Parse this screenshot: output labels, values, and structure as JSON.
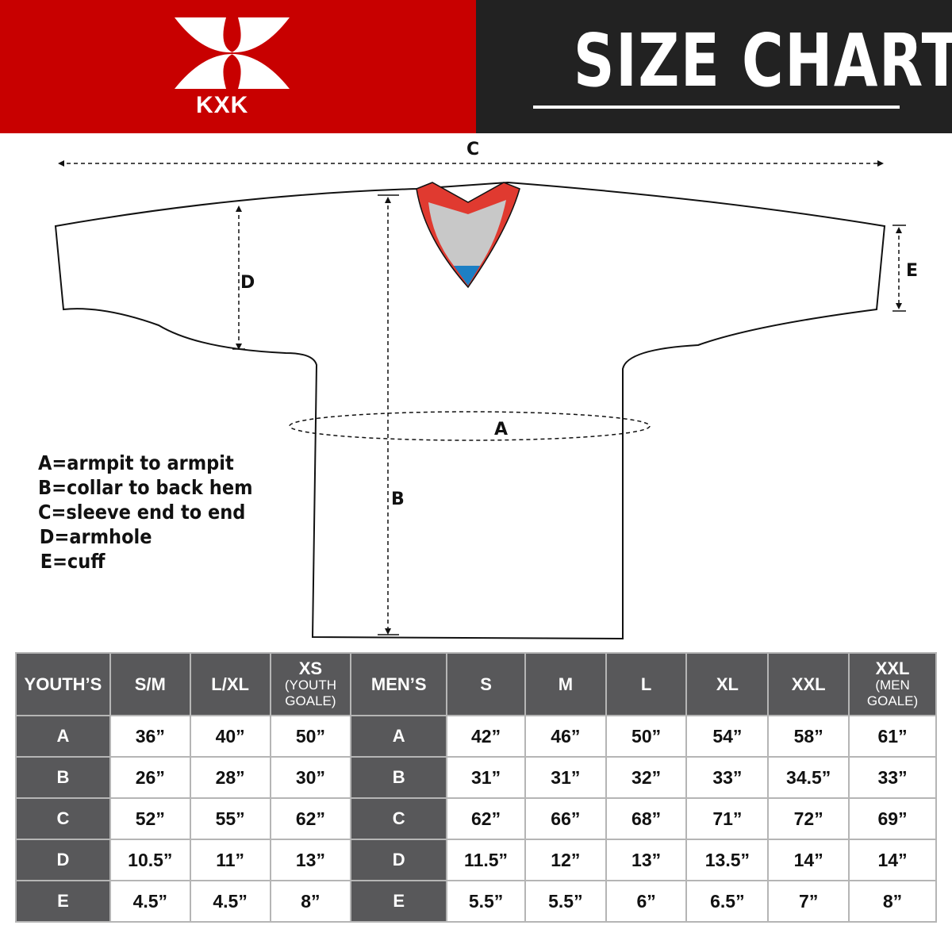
{
  "brand": {
    "logo_text": "KXK",
    "color": "#c80000"
  },
  "title": "SIZE CHART",
  "diagram": {
    "labels": {
      "a": "A",
      "b": "B",
      "c": "C",
      "d": "D",
      "e": "E"
    }
  },
  "legend": [
    "A=armpit to armpit",
    "B=collar to back hem",
    "C=sleeve end to end",
    "D=armhole",
    "E=cuff"
  ],
  "table": {
    "youth_header": {
      "label": "YOUTH’S",
      "sizes": [
        {
          "main": "S/M",
          "sub": ""
        },
        {
          "main": "L/XL",
          "sub": ""
        },
        {
          "main": "XS",
          "sub": "(YOUTH GOALE)"
        }
      ]
    },
    "men_header": {
      "label": "MEN’S",
      "sizes": [
        {
          "main": "S",
          "sub": ""
        },
        {
          "main": "M",
          "sub": ""
        },
        {
          "main": "L",
          "sub": ""
        },
        {
          "main": "XL",
          "sub": ""
        },
        {
          "main": "XXL",
          "sub": ""
        },
        {
          "main": "XXL",
          "sub": "(MEN GOALE)"
        }
      ]
    },
    "rows": [
      {
        "key": "A",
        "youth": [
          "36”",
          "40”",
          "50”"
        ],
        "men": [
          "42”",
          "46”",
          "50”",
          "54”",
          "58”",
          "61”"
        ]
      },
      {
        "key": "B",
        "youth": [
          "26”",
          "28”",
          "30”"
        ],
        "men": [
          "31”",
          "31”",
          "32”",
          "33”",
          "34.5”",
          "33”"
        ]
      },
      {
        "key": "C",
        "youth": [
          "52”",
          "55”",
          "62”"
        ],
        "men": [
          "62”",
          "66”",
          "68”",
          "71”",
          "72”",
          "69”"
        ]
      },
      {
        "key": "D",
        "youth": [
          "10.5”",
          "11”",
          "13”"
        ],
        "men": [
          "11.5”",
          "12”",
          "13”",
          "13.5”",
          "14”",
          "14”"
        ]
      },
      {
        "key": "E",
        "youth": [
          "4.5”",
          "4.5”",
          "8”"
        ],
        "men": [
          "5.5”",
          "5.5”",
          "6”",
          "6.5”",
          "7”",
          "8”"
        ]
      }
    ]
  }
}
